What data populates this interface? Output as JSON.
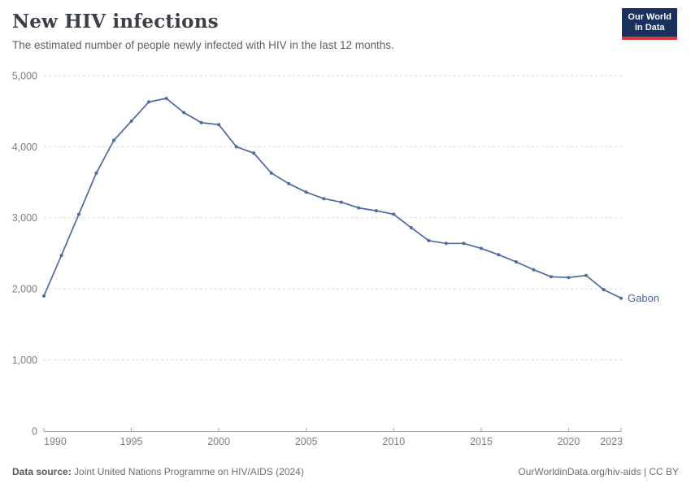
{
  "header": {
    "title": "New HIV infections",
    "subtitle": "The estimated number of people newly infected with HIV in the last 12 months."
  },
  "logo": {
    "line1": "Our World",
    "line2": "in Data",
    "bg_color": "#1a3160",
    "accent_color": "#d73c32"
  },
  "chart_data": {
    "type": "line",
    "title": "New HIV infections",
    "xlabel": "",
    "ylabel": "",
    "xlim": [
      1990,
      2023
    ],
    "ylim": [
      0,
      5000
    ],
    "grid": "horizontal-dashed",
    "legend": "end-of-line entity label",
    "x": [
      1990,
      1991,
      1992,
      1993,
      1994,
      1995,
      1996,
      1997,
      1998,
      1999,
      2000,
      2001,
      2002,
      2003,
      2004,
      2005,
      2006,
      2007,
      2008,
      2009,
      2010,
      2011,
      2012,
      2013,
      2014,
      2015,
      2016,
      2017,
      2018,
      2019,
      2020,
      2021,
      2022,
      2023
    ],
    "series": [
      {
        "name": "Gabon",
        "color": "#4c6a9c",
        "values": [
          1900,
          2470,
          3050,
          3630,
          4090,
          4360,
          4630,
          4680,
          4480,
          4340,
          4310,
          4000,
          3910,
          3630,
          3480,
          3360,
          3270,
          3220,
          3140,
          3100,
          3050,
          2860,
          2680,
          2640,
          2640,
          2570,
          2480,
          2380,
          2270,
          2170,
          2160,
          2190,
          1990,
          1870
        ]
      }
    ],
    "xticks": [
      1990,
      1995,
      2000,
      2005,
      2010,
      2015,
      2020,
      2023
    ],
    "yticks": [
      {
        "value": 0,
        "label": "0"
      },
      {
        "value": 1000,
        "label": "1,000"
      },
      {
        "value": 2000,
        "label": "2,000"
      },
      {
        "value": 3000,
        "label": "3,000"
      },
      {
        "value": 4000,
        "label": "4,000"
      },
      {
        "value": 5000,
        "label": "5,000"
      }
    ]
  },
  "footer": {
    "source_label": "Data source:",
    "source_text": "Joint United Nations Programme on HIV/AIDS (2024)",
    "credit": "OurWorldinData.org/hiv-aids | CC BY"
  }
}
